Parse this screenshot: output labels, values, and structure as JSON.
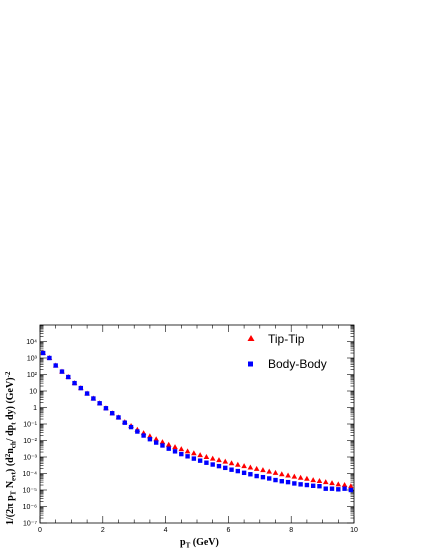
{
  "chart_data": {
    "type": "scatter",
    "xlabel": "p_T (GeV)",
    "ylabel": "1/(2π p_T N_evt) (d²n_ch / dp_t dy) (GeV)⁻²",
    "xlim": [
      0,
      10
    ],
    "ylim": [
      1e-07,
      100000
    ],
    "yscale": "log",
    "legend_position": "top-right",
    "x_ticks": [
      "0",
      "2",
      "4",
      "6",
      "8",
      "10"
    ],
    "y_ticks": [
      "10⁻⁷",
      "10⁻⁶",
      "10⁻⁵",
      "10⁻⁴",
      "10⁻³",
      "10⁻²",
      "10⁻¹",
      "1",
      "10",
      "10²",
      "10³",
      "10⁴"
    ],
    "series": [
      {
        "name": "Tip-Tip",
        "color": "#ff0000",
        "marker": "triangle",
        "x": [
          0.1,
          0.3,
          0.5,
          0.7,
          0.9,
          1.1,
          1.3,
          1.5,
          1.7,
          1.9,
          2.1,
          2.3,
          2.5,
          2.7,
          2.9,
          3.1,
          3.3,
          3.5,
          3.7,
          3.9,
          4.1,
          4.3,
          4.5,
          4.7,
          4.9,
          5.1,
          5.3,
          5.5,
          5.7,
          5.9,
          6.1,
          6.3,
          6.5,
          6.7,
          6.9,
          7.1,
          7.3,
          7.5,
          7.7,
          7.9,
          8.1,
          8.3,
          8.5,
          8.7,
          8.9,
          9.1,
          9.3,
          9.5,
          9.7,
          9.9
        ],
        "y": [
          2000,
          1000,
          350,
          150,
          70,
          30,
          15,
          7,
          3.5,
          1.8,
          0.9,
          0.45,
          0.25,
          0.13,
          0.075,
          0.045,
          0.028,
          0.018,
          0.012,
          0.008,
          0.0055,
          0.004,
          0.003,
          0.0022,
          0.0017,
          0.0013,
          0.001,
          0.0008,
          0.00065,
          0.00052,
          0.00042,
          0.00034,
          0.00028,
          0.00023,
          0.00019,
          0.00016,
          0.00013,
          0.00011,
          9e-05,
          7.5e-05,
          6.5e-05,
          5.5e-05,
          4.8e-05,
          4e-05,
          3.5e-05,
          3e-05,
          2.6e-05,
          2.2e-05,
          2e-05,
          1.7e-05
        ]
      },
      {
        "name": "Body-Body",
        "color": "#0000ff",
        "marker": "square",
        "x": [
          0.1,
          0.3,
          0.5,
          0.7,
          0.9,
          1.1,
          1.3,
          1.5,
          1.7,
          1.9,
          2.1,
          2.3,
          2.5,
          2.7,
          2.9,
          3.1,
          3.3,
          3.5,
          3.7,
          3.9,
          4.1,
          4.3,
          4.5,
          4.7,
          4.9,
          5.1,
          5.3,
          5.5,
          5.7,
          5.9,
          6.1,
          6.3,
          6.5,
          6.7,
          6.9,
          7.1,
          7.3,
          7.5,
          7.7,
          7.9,
          8.1,
          8.3,
          8.5,
          8.7,
          8.9,
          9.1,
          9.3,
          9.5,
          9.7,
          9.9
        ],
        "y": [
          2000,
          1000,
          350,
          150,
          70,
          30,
          15,
          7,
          3.5,
          1.8,
          0.9,
          0.45,
          0.25,
          0.12,
          0.065,
          0.035,
          0.02,
          0.012,
          0.0075,
          0.005,
          0.0032,
          0.0022,
          0.0015,
          0.0011,
          0.0008,
          0.0006,
          0.00045,
          0.00035,
          0.00028,
          0.00022,
          0.00017,
          0.00014,
          0.00011,
          9e-05,
          7e-05,
          6e-05,
          5e-05,
          4e-05,
          3.4e-05,
          3e-05,
          2.5e-05,
          2.2e-05,
          2e-05,
          1.8e-05,
          1.7e-05,
          1.2e-05,
          1.2e-05,
          1.1e-05,
          1.2e-05,
          1e-05
        ]
      }
    ]
  }
}
